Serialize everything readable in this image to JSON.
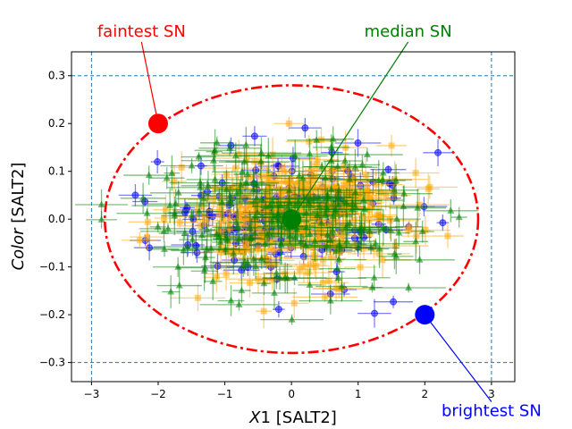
{
  "chart_data": {
    "type": "scatter",
    "xlabel_italic": "X",
    "xlabel_rest": "1 [SALT2]",
    "ylabel_italic": "Color",
    "ylabel_rest": " [SALT2]",
    "xlim": [
      -3.3,
      3.35
    ],
    "ylim": [
      -0.34,
      0.35
    ],
    "xticks": [
      -3,
      -2,
      -1,
      0,
      1,
      2,
      3
    ],
    "xtick_labels": [
      "−3",
      "−2",
      "−1",
      "0",
      "1",
      "2",
      "3"
    ],
    "yticks": [
      -0.3,
      -0.2,
      -0.1,
      0.0,
      0.1,
      0.2,
      0.3
    ],
    "ytick_labels": [
      "−0.3",
      "−0.2",
      "−0.1",
      "0.0",
      "0.1",
      "0.2",
      "0.3"
    ],
    "grid": false,
    "bounds": {
      "x": [
        -3,
        3
      ],
      "y": [
        -0.3,
        0.3
      ],
      "style": "dashed",
      "color": "#1f77b4"
    },
    "ellipse": {
      "center": [
        0.0,
        0.0
      ],
      "semi_x": 2.8,
      "semi_y": 0.28,
      "style": "dash-dot",
      "color": "#ff0000"
    },
    "series": [
      {
        "color": "#0000ff",
        "marker": "circle",
        "n": 150,
        "seed": 11,
        "x_sd": 0.95,
        "y_sd": 0.07,
        "xerr_range": [
          0.05,
          0.35
        ],
        "yerr_range": [
          0.008,
          0.03
        ]
      },
      {
        "color": "#ffa500",
        "marker": "square",
        "n": 330,
        "seed": 23,
        "x_sd": 0.85,
        "y_sd": 0.065,
        "xerr_range": [
          0.1,
          0.5
        ],
        "yerr_range": [
          0.01,
          0.04
        ]
      },
      {
        "color": "#008000",
        "marker": "triangle",
        "n": 230,
        "seed": 37,
        "x_sd": 1.05,
        "y_sd": 0.075,
        "xerr_range": [
          0.1,
          0.6
        ],
        "yerr_range": [
          0.01,
          0.045
        ]
      }
    ],
    "special_points": [
      {
        "label": "faintest SN",
        "x": -2.0,
        "y": 0.2,
        "color": "#ff0000",
        "label_x": -2.25,
        "label_y": 0.382
      },
      {
        "label": "median SN",
        "x": 0.0,
        "y": 0.0,
        "color": "#008000",
        "label_x": 1.75,
        "label_y": 0.382
      },
      {
        "label": "brightest SN",
        "x": 2.0,
        "y": -0.2,
        "color": "#0000ff",
        "label_x": 3.0,
        "label_y": -0.412
      }
    ]
  }
}
